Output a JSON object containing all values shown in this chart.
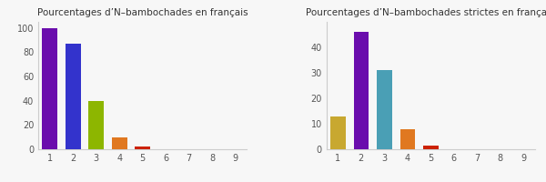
{
  "left": {
    "title": "Pourcentages d’N–bambochades en français",
    "values": [
      100,
      87,
      40,
      10,
      2,
      0,
      0,
      0,
      0
    ],
    "colors": [
      "#6a0dad",
      "#3333cc",
      "#8db600",
      "#e07820",
      "#cc2200",
      "#cccccc",
      "#cccccc",
      "#cccccc",
      "#cccccc"
    ],
    "xlim": [
      0.5,
      9.5
    ],
    "ylim": [
      0,
      105
    ],
    "yticks": [
      0,
      20,
      40,
      60,
      80,
      100
    ],
    "xticks": [
      1,
      2,
      3,
      4,
      5,
      6,
      7,
      8,
      9
    ]
  },
  "right": {
    "title": "Pourcentages d’N–bambochades strictes en français",
    "values": [
      13,
      46,
      31,
      8,
      1.5,
      0,
      0,
      0,
      0
    ],
    "colors": [
      "#c8a830",
      "#6a0dad",
      "#4a9fb5",
      "#e07820",
      "#cc2200",
      "#cccccc",
      "#cccccc",
      "#cccccc",
      "#cccccc"
    ],
    "xlim": [
      0.5,
      9.5
    ],
    "ylim": [
      0,
      50
    ],
    "yticks": [
      0,
      10,
      20,
      30,
      40
    ],
    "xticks": [
      1,
      2,
      3,
      4,
      5,
      6,
      7,
      8,
      9
    ]
  },
  "bg_color": "#f7f7f7",
  "bar_width": 0.65,
  "title_fontsize": 7.5,
  "tick_fontsize": 7.0
}
